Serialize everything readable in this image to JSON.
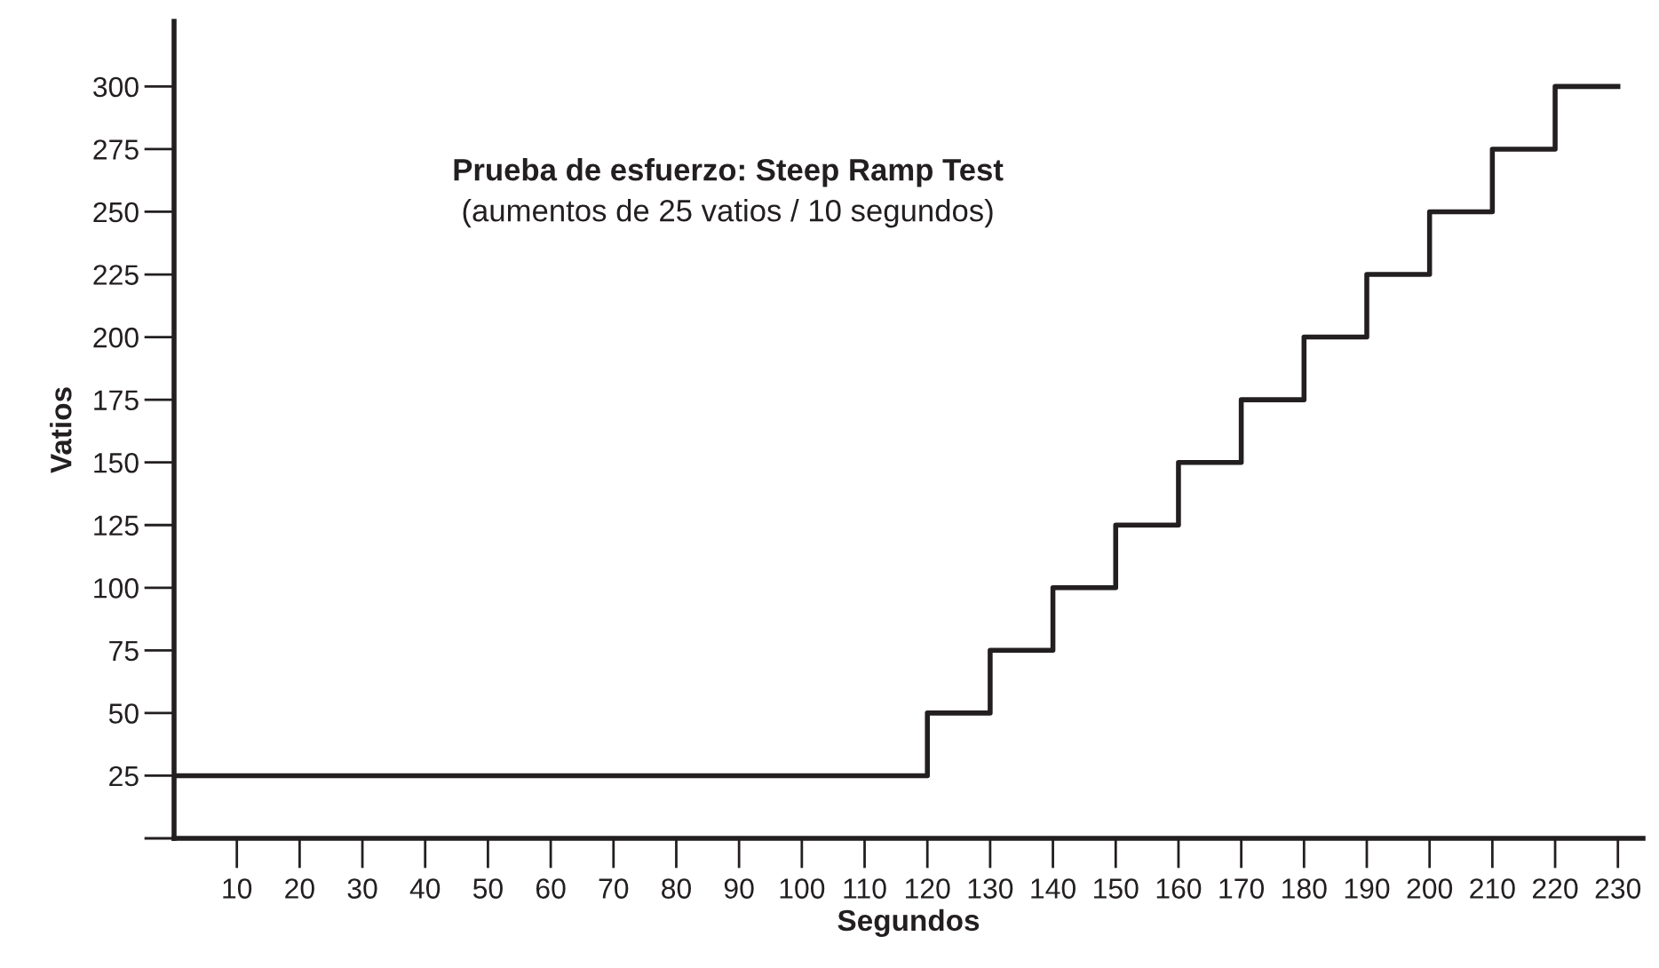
{
  "chart_data": {
    "type": "step",
    "title": "Prueba de esfuerzo: Steep Ramp Test",
    "subtitle": "(aumentos de 25 vatios / 10 segundos)",
    "xlabel": "Segundos",
    "ylabel": "Vatios",
    "x": [
      0,
      120,
      130,
      140,
      150,
      160,
      170,
      180,
      190,
      200,
      210,
      220,
      230
    ],
    "series": [
      {
        "color": "#231f20",
        "values": [
          25,
          50,
          75,
          100,
          125,
          150,
          175,
          200,
          225,
          250,
          275,
          300,
          300
        ]
      }
    ],
    "xlim": [
      0,
      234
    ],
    "ylim": [
      0,
      326
    ],
    "xticks": [
      10,
      20,
      30,
      40,
      50,
      60,
      70,
      80,
      90,
      100,
      110,
      120,
      130,
      140,
      150,
      160,
      170,
      180,
      190,
      200,
      210,
      220,
      230
    ],
    "yticks": [
      {
        "value": 0,
        "label": null
      },
      25,
      50,
      75,
      100,
      125,
      150,
      175,
      200,
      225,
      250,
      275,
      300
    ],
    "grid": false
  }
}
